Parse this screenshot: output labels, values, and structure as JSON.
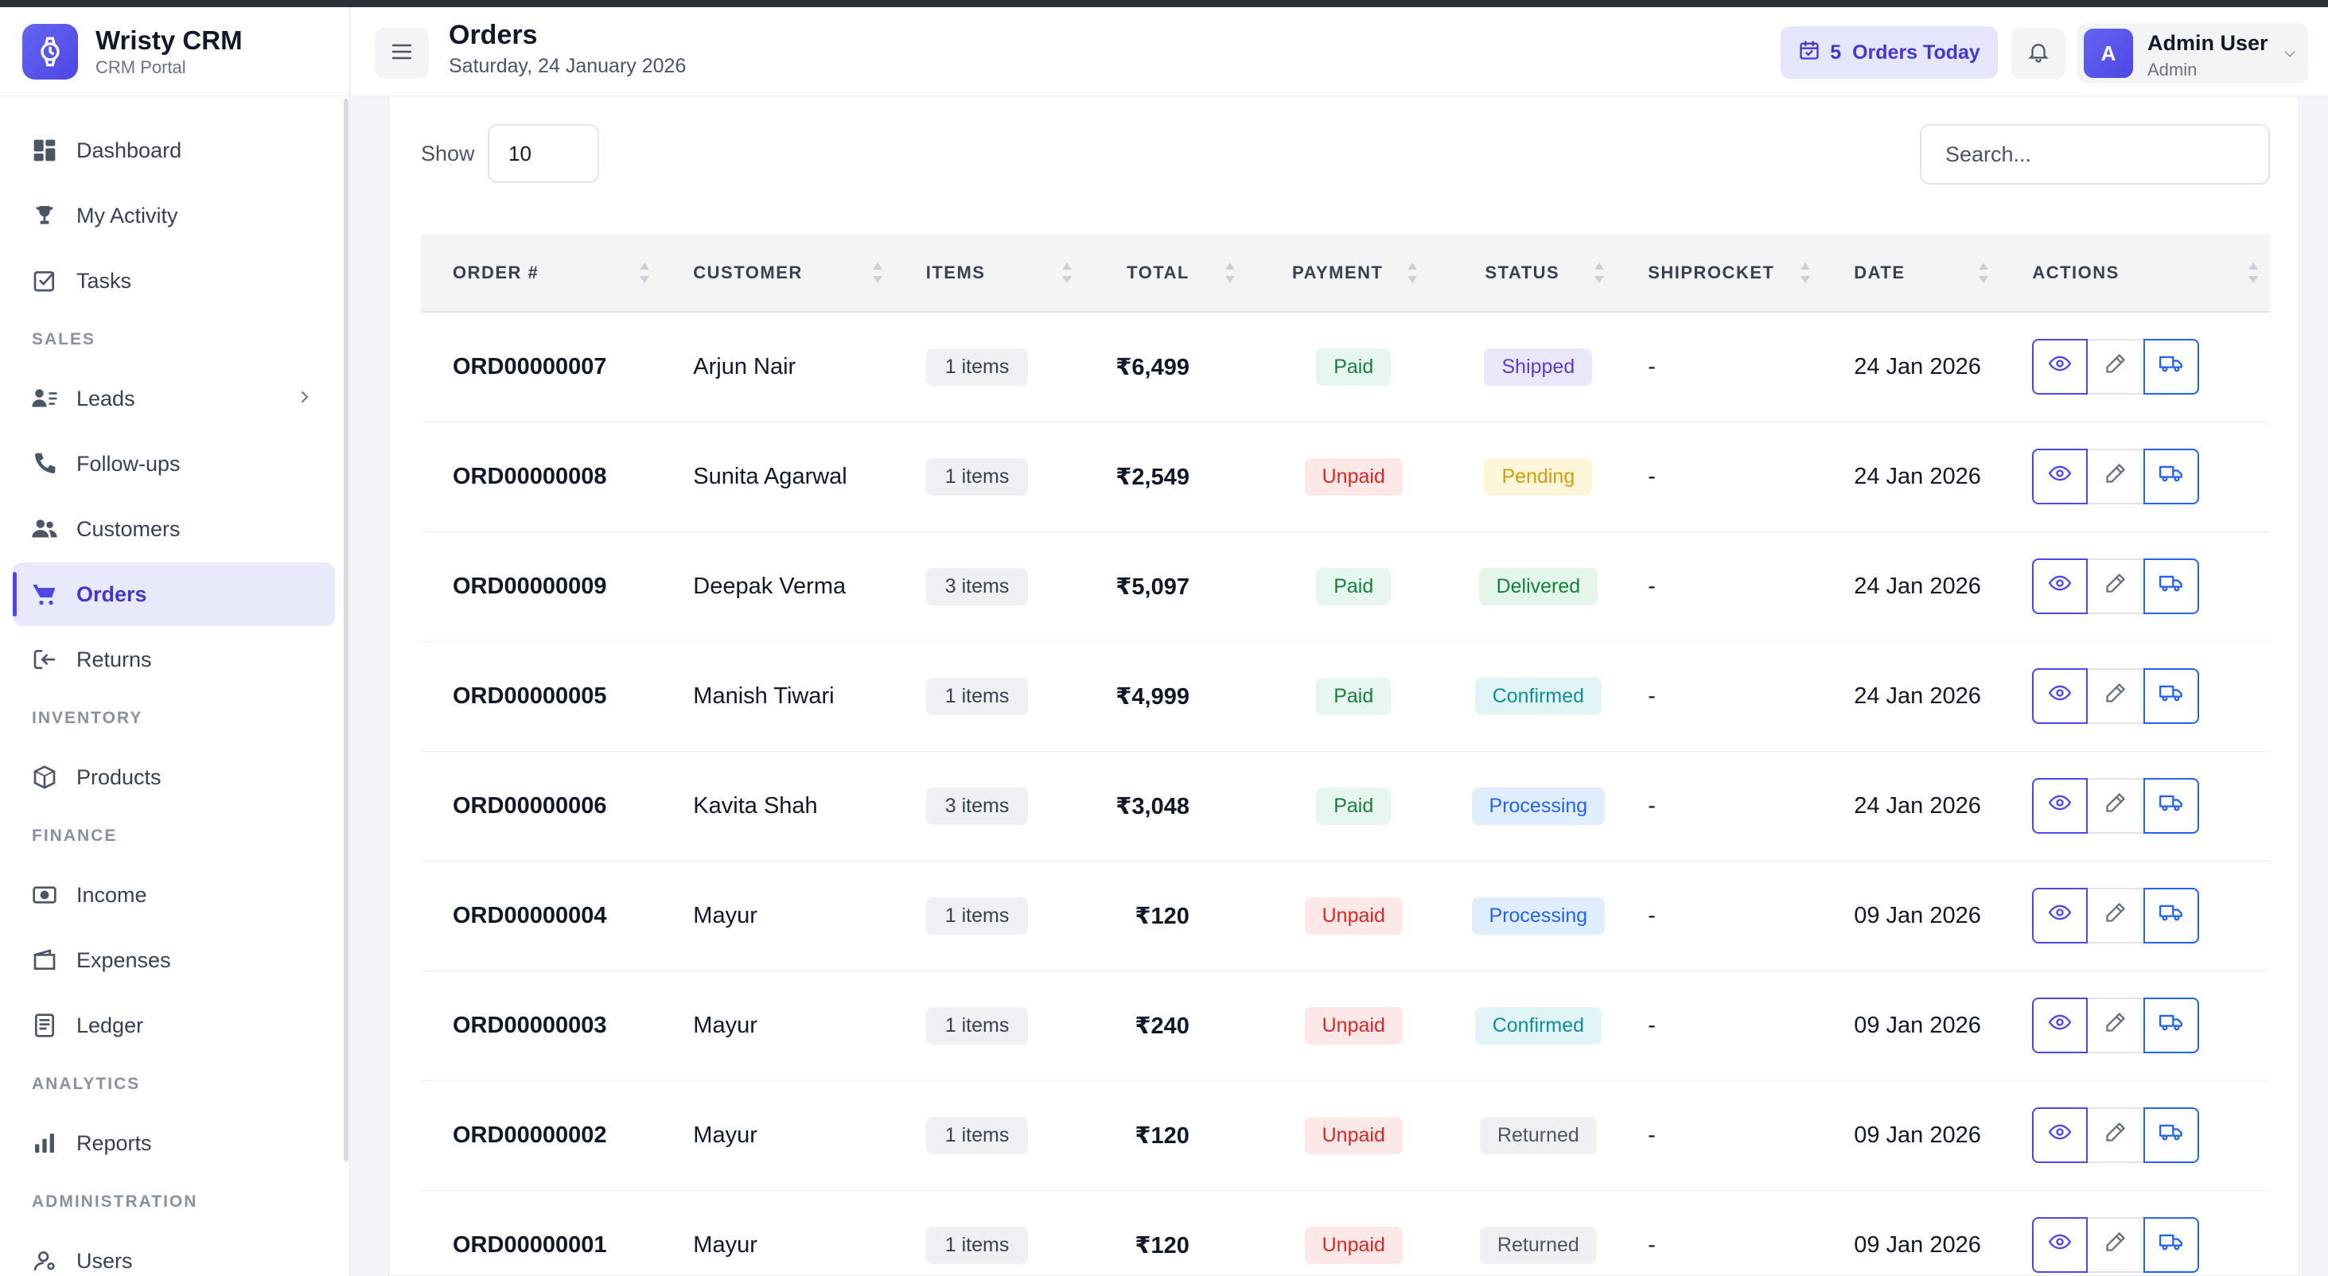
{
  "app": {
    "name": "Wristy CRM",
    "subtitle": "CRM Portal",
    "logo_icon": "watch-icon"
  },
  "sidebar": {
    "items": [
      {
        "type": "item",
        "label": "Dashboard",
        "icon": "dashboard-icon",
        "active": false
      },
      {
        "type": "item",
        "label": "My Activity",
        "icon": "trophy-icon",
        "active": false
      },
      {
        "type": "item",
        "label": "Tasks",
        "icon": "checkbox-icon",
        "active": false
      },
      {
        "type": "section",
        "label": "SALES"
      },
      {
        "type": "item",
        "label": "Leads",
        "icon": "leads-icon",
        "active": false,
        "has_submenu": true
      },
      {
        "type": "item",
        "label": "Follow-ups",
        "icon": "phone-icon",
        "active": false
      },
      {
        "type": "item",
        "label": "Customers",
        "icon": "users-group-icon",
        "active": false
      },
      {
        "type": "item",
        "label": "Orders",
        "icon": "cart-icon",
        "active": true
      },
      {
        "type": "item",
        "label": "Returns",
        "icon": "return-icon",
        "active": false
      },
      {
        "type": "section",
        "label": "INVENTORY"
      },
      {
        "type": "item",
        "label": "Products",
        "icon": "box-icon",
        "active": false
      },
      {
        "type": "section",
        "label": "FINANCE"
      },
      {
        "type": "item",
        "label": "Income",
        "icon": "money-icon",
        "active": false
      },
      {
        "type": "item",
        "label": "Expenses",
        "icon": "wallet-icon",
        "active": false
      },
      {
        "type": "item",
        "label": "Ledger",
        "icon": "ledger-icon",
        "active": false
      },
      {
        "type": "section",
        "label": "ANALYTICS"
      },
      {
        "type": "item",
        "label": "Reports",
        "icon": "bar-chart-icon",
        "active": false
      },
      {
        "type": "section",
        "label": "ADMINISTRATION"
      },
      {
        "type": "item",
        "label": "Users",
        "icon": "user-icon",
        "active": false
      }
    ]
  },
  "header": {
    "title": "Orders",
    "date": "Saturday, 24 January 2026",
    "orders_today_count": "5",
    "orders_today_label": "Orders Today",
    "user_initial": "A",
    "user_name": "Admin User",
    "user_role": "Admin"
  },
  "table_controls": {
    "show_label": "Show",
    "page_size": "10",
    "search_placeholder": "Search..."
  },
  "table": {
    "columns": [
      "ORDER #",
      "CUSTOMER",
      "ITEMS",
      "TOTAL",
      "PAYMENT",
      "STATUS",
      "SHIPROCKET",
      "DATE",
      "ACTIONS"
    ],
    "rows": [
      {
        "order": "ORD00000007",
        "customer": "Arjun Nair",
        "items": "1 items",
        "total": "₹6,499",
        "payment": "Paid",
        "status": "Shipped",
        "shiprocket": "-",
        "date": "24 Jan 2026"
      },
      {
        "order": "ORD00000008",
        "customer": "Sunita Agarwal",
        "items": "1 items",
        "total": "₹2,549",
        "payment": "Unpaid",
        "status": "Pending",
        "shiprocket": "-",
        "date": "24 Jan 2026"
      },
      {
        "order": "ORD00000009",
        "customer": "Deepak Verma",
        "items": "3 items",
        "total": "₹5,097",
        "payment": "Paid",
        "status": "Delivered",
        "shiprocket": "-",
        "date": "24 Jan 2026"
      },
      {
        "order": "ORD00000005",
        "customer": "Manish Tiwari",
        "items": "1 items",
        "total": "₹4,999",
        "payment": "Paid",
        "status": "Confirmed",
        "shiprocket": "-",
        "date": "24 Jan 2026"
      },
      {
        "order": "ORD00000006",
        "customer": "Kavita Shah",
        "items": "3 items",
        "total": "₹3,048",
        "payment": "Paid",
        "status": "Processing",
        "shiprocket": "-",
        "date": "24 Jan 2026"
      },
      {
        "order": "ORD00000004",
        "customer": "Mayur",
        "items": "1 items",
        "total": "₹120",
        "payment": "Unpaid",
        "status": "Processing",
        "shiprocket": "-",
        "date": "09 Jan 2026"
      },
      {
        "order": "ORD00000003",
        "customer": "Mayur",
        "items": "1 items",
        "total": "₹240",
        "payment": "Unpaid",
        "status": "Confirmed",
        "shiprocket": "-",
        "date": "09 Jan 2026"
      },
      {
        "order": "ORD00000002",
        "customer": "Mayur",
        "items": "1 items",
        "total": "₹120",
        "payment": "Unpaid",
        "status": "Returned",
        "shiprocket": "-",
        "date": "09 Jan 2026"
      },
      {
        "order": "ORD00000001",
        "customer": "Mayur",
        "items": "1 items",
        "total": "₹120",
        "payment": "Unpaid",
        "status": "Returned",
        "shiprocket": "-",
        "date": "09 Jan 2026"
      }
    ],
    "row_actions": [
      {
        "name": "view-order-button",
        "icon": "eye-icon"
      },
      {
        "name": "edit-order-button",
        "icon": "pencil-icon"
      },
      {
        "name": "ship-order-button",
        "icon": "truck-icon"
      }
    ]
  },
  "colors": {
    "accent": "#4f46e5",
    "accent_text": "#4338ca",
    "paid": "#15803d",
    "unpaid": "#dc2626"
  }
}
